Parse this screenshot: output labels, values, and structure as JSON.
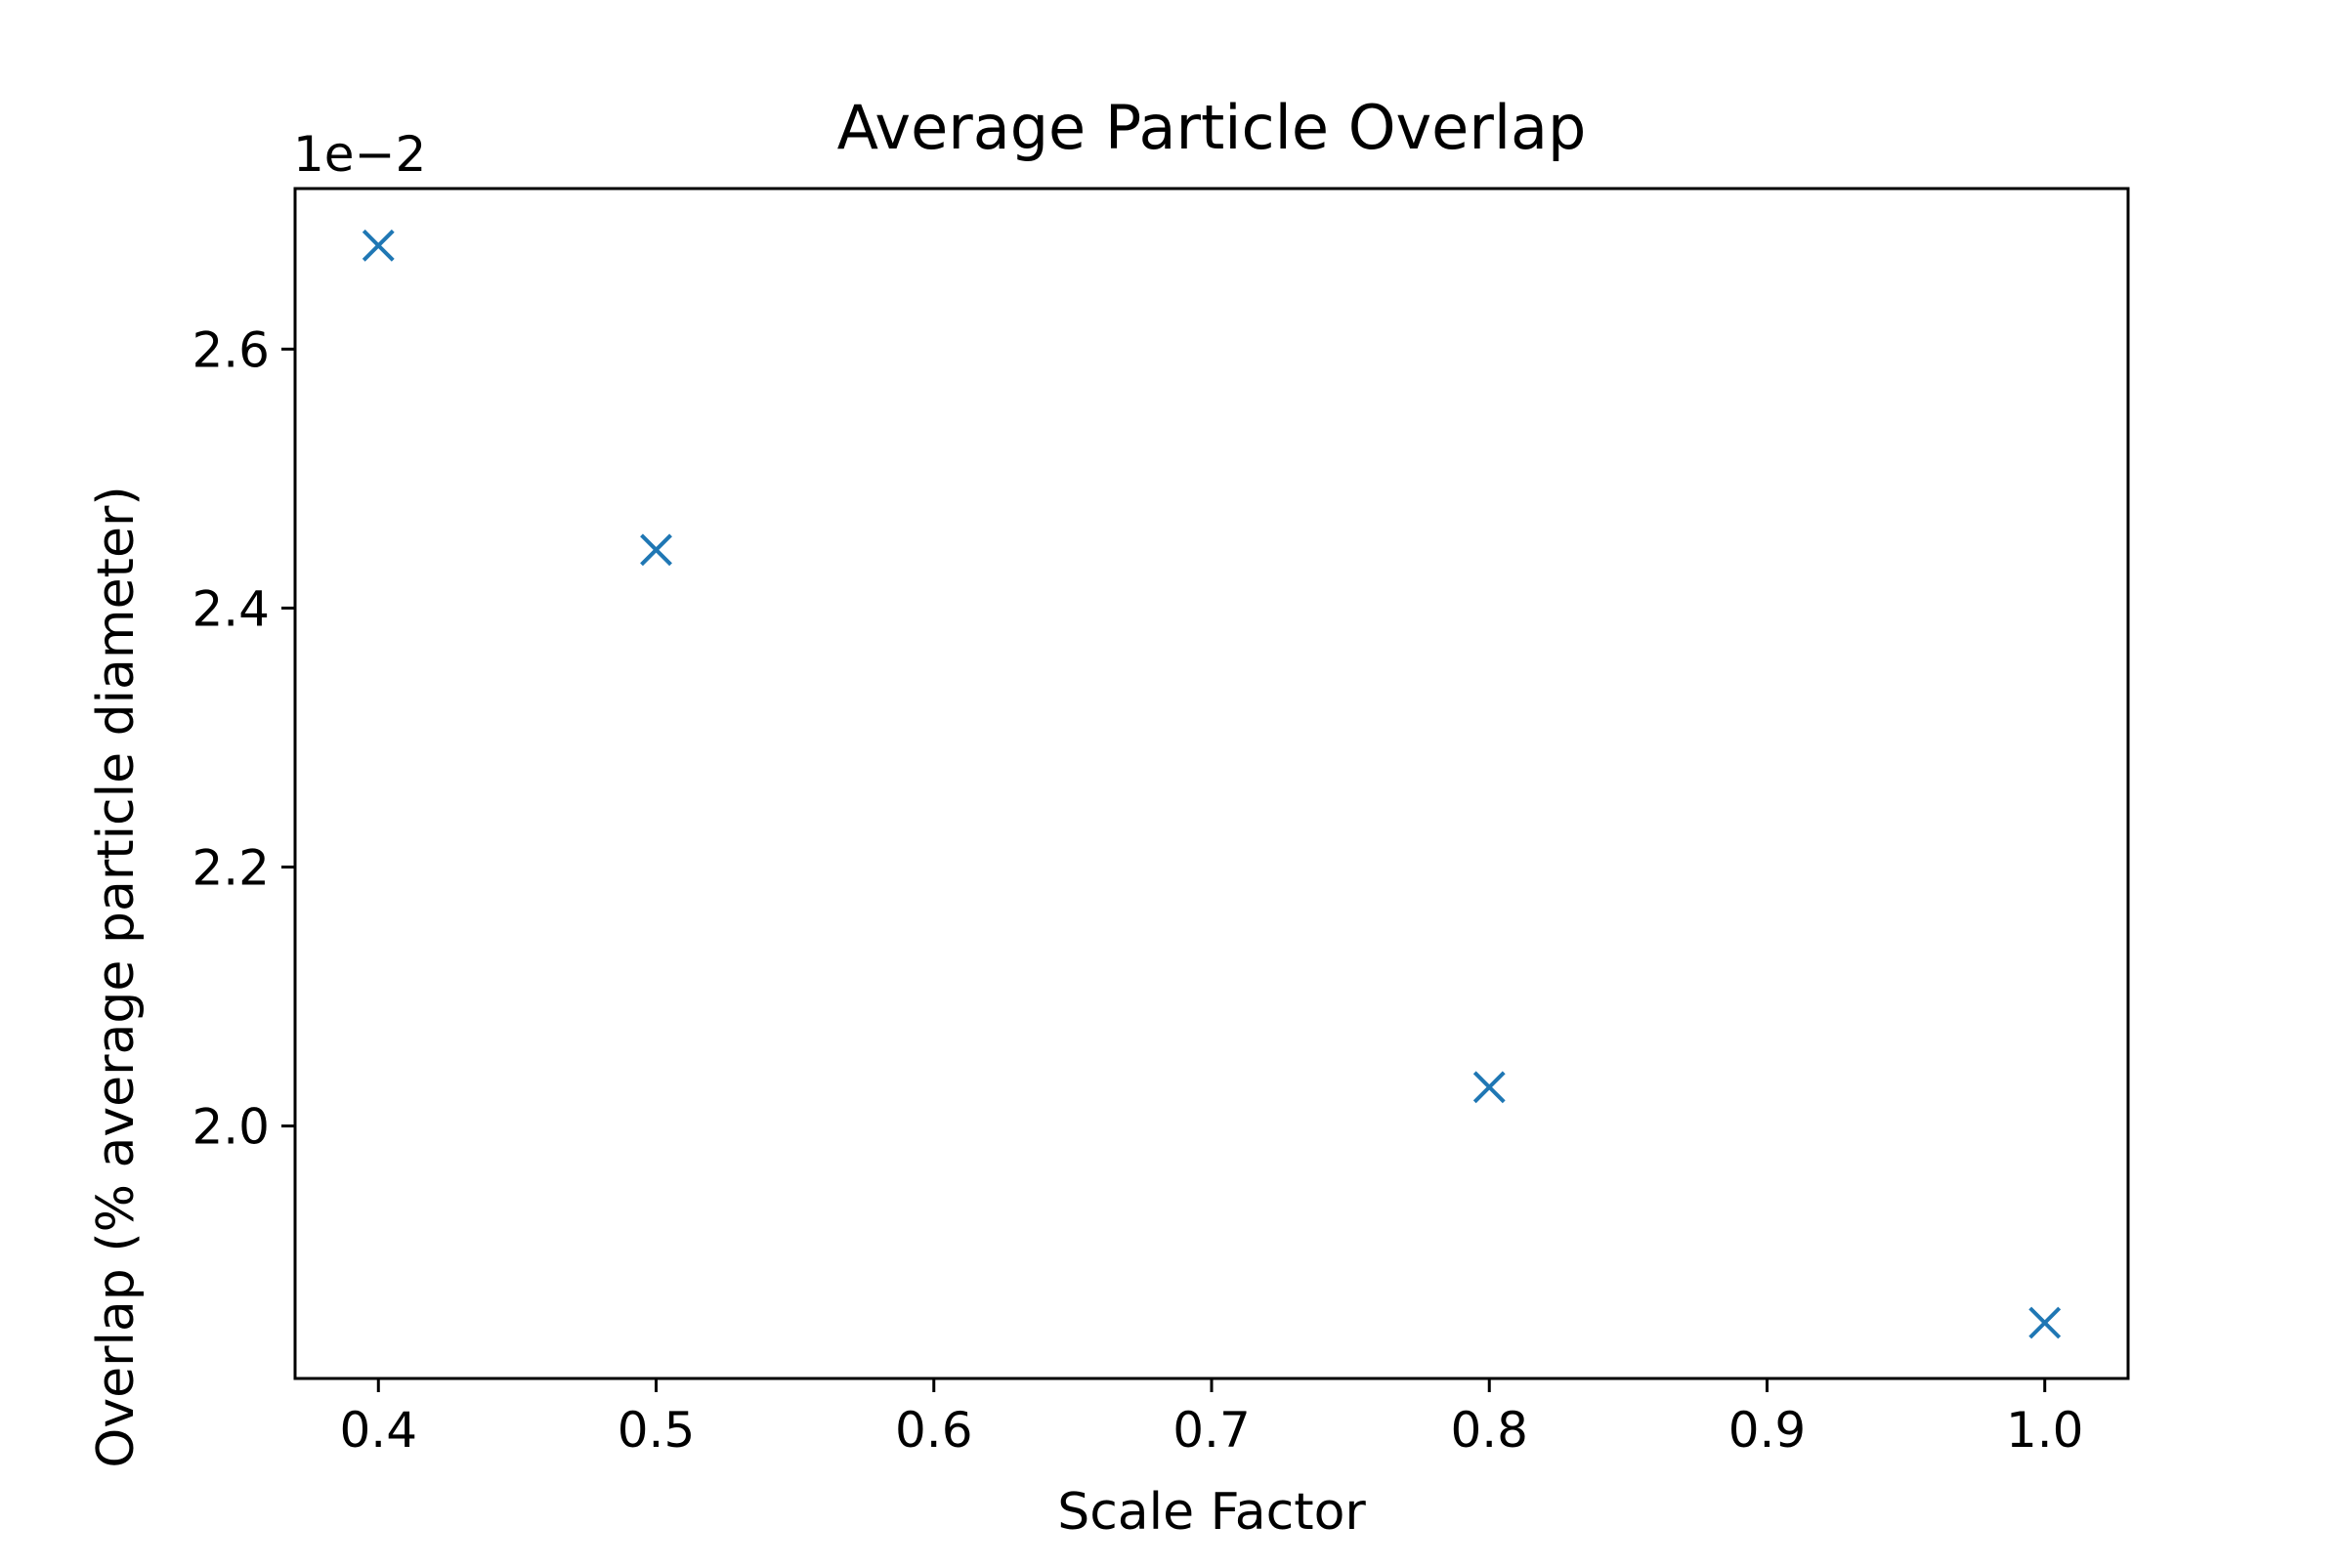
{
  "chart_data": {
    "type": "scatter",
    "title": "Average Particle Overlap",
    "xlabel": "Scale Factor",
    "ylabel": "Overlap (% average particle diameter)",
    "y_offset_label": "1e−2",
    "xlim": [
      0.37,
      1.03
    ],
    "ylim": [
      1.805,
      2.724
    ],
    "x_ticks": [
      0.4,
      0.5,
      0.6,
      0.7,
      0.8,
      0.9,
      1.0
    ],
    "x_tick_labels": [
      "0.4",
      "0.5",
      "0.6",
      "0.7",
      "0.8",
      "0.9",
      "1.0"
    ],
    "y_ticks": [
      2.0,
      2.2,
      2.4,
      2.6
    ],
    "y_tick_labels": [
      "2.0",
      "2.2",
      "2.4",
      "2.6"
    ],
    "grid": false,
    "marker": "x",
    "series": [
      {
        "color": "#1f77b4",
        "points": [
          {
            "x": 0.4,
            "y": 2.68
          },
          {
            "x": 0.5,
            "y": 2.445
          },
          {
            "x": 0.8,
            "y": 2.03
          },
          {
            "x": 1.0,
            "y": 1.848
          }
        ]
      }
    ]
  }
}
